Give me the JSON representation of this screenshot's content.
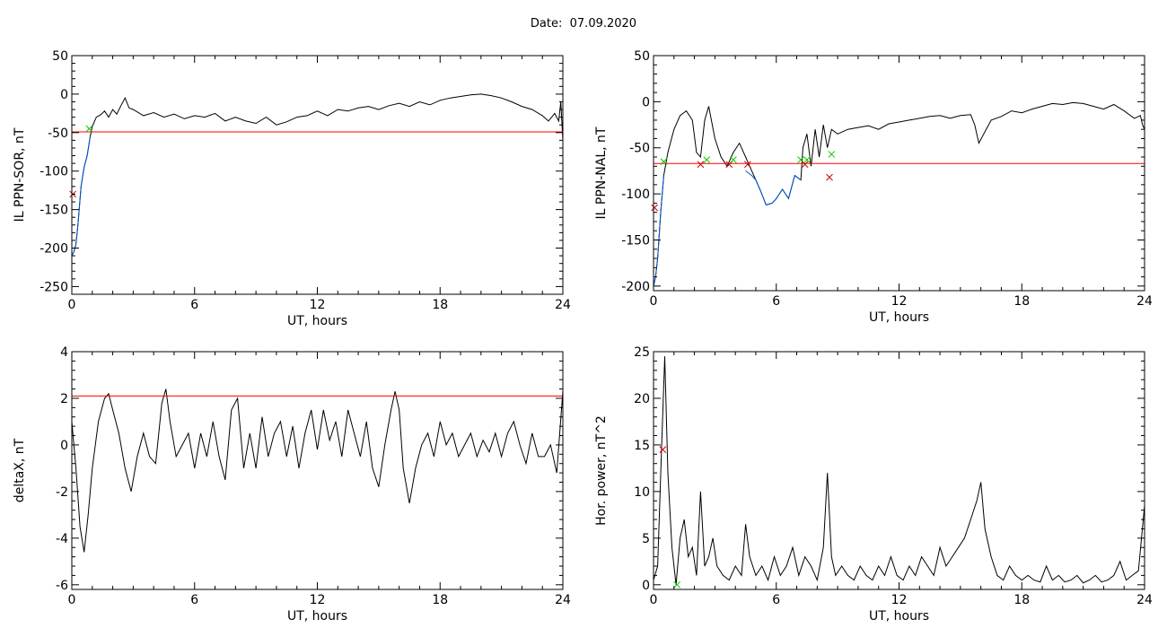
{
  "page": {
    "date_label": "Date:",
    "date_value": "07.09.2020"
  },
  "chart_data": [
    {
      "type": "line",
      "xlabel": "UT, hours",
      "ylabel": "IL PPN-SOR, nT",
      "xlim": [
        0,
        24
      ],
      "ylim": [
        -260,
        50
      ],
      "xticks": [
        0,
        6,
        12,
        18,
        24
      ],
      "yticks": [
        -250,
        -200,
        -150,
        -100,
        -50,
        0,
        50
      ],
      "threshold": -49,
      "threshold_color": "#ff0000",
      "series": [
        {
          "color": "#000000",
          "x": [
            0,
            0.1,
            0.2,
            0.3,
            0.45,
            0.6,
            0.75,
            0.9,
            1.0,
            1.2,
            1.4,
            1.6,
            1.8,
            2.0,
            2.2,
            2.4,
            2.6,
            2.8,
            3.0,
            3.5,
            4.0,
            4.5,
            5.0,
            5.5,
            6.0,
            6.5,
            7.0,
            7.5,
            8.0,
            8.5,
            9.0,
            9.5,
            10.0,
            10.5,
            11.0,
            11.5,
            12.0,
            12.5,
            13.0,
            13.5,
            14.0,
            14.5,
            15.0,
            15.5,
            16.0,
            16.5,
            17.0,
            17.5,
            18.0,
            18.5,
            19.0,
            19.5,
            20.0,
            20.5,
            21.0,
            21.5,
            22.0,
            22.5,
            23.0,
            23.3,
            23.6,
            23.8,
            23.9,
            24.0
          ],
          "y": [
            -210,
            -205,
            -195,
            -170,
            -120,
            -95,
            -80,
            -55,
            -42,
            -30,
            -27,
            -22,
            -30,
            -20,
            -26,
            -15,
            -5,
            -18,
            -20,
            -28,
            -24,
            -30,
            -26,
            -32,
            -28,
            -30,
            -25,
            -35,
            -30,
            -35,
            -38,
            -30,
            -40,
            -36,
            -30,
            -28,
            -22,
            -28,
            -20,
            -22,
            -18,
            -16,
            -20,
            -15,
            -12,
            -16,
            -10,
            -14,
            -8,
            -5,
            -3,
            -1,
            0,
            -2,
            -5,
            -10,
            -16,
            -20,
            -28,
            -35,
            -25,
            -35,
            -10,
            -60
          ]
        },
        {
          "color": "#0055cc",
          "x": [
            0,
            0.1,
            0.2,
            0.3,
            0.45,
            0.6,
            0.75,
            0.9
          ],
          "y": [
            -210,
            -205,
            -195,
            -170,
            -120,
            -95,
            -80,
            -55
          ]
        }
      ],
      "markers": [
        {
          "x": 0.85,
          "y": -45,
          "color": "#00cc00"
        },
        {
          "x": 0.05,
          "y": -130,
          "color": "#cc0000"
        }
      ]
    },
    {
      "type": "line",
      "xlabel": "UT, hours",
      "ylabel": "IL PPN-NAL, nT",
      "xlim": [
        0,
        24
      ],
      "ylim": [
        -205,
        50
      ],
      "xticks": [
        0,
        6,
        12,
        18,
        24
      ],
      "yticks": [
        -200,
        -150,
        -100,
        -50,
        0,
        50
      ],
      "threshold": -67,
      "threshold_color": "#ff0000",
      "series": [
        {
          "color": "#000000",
          "x": [
            0,
            0.1,
            0.2,
            0.35,
            0.5,
            0.7,
            1.0,
            1.3,
            1.6,
            1.9,
            2.1,
            2.3,
            2.5,
            2.7,
            3.0,
            3.3,
            3.6,
            3.9,
            4.2,
            4.5,
            4.8,
            5.0,
            5.2,
            5.5,
            5.8,
            6.0,
            6.3,
            6.6,
            6.9,
            7.2,
            7.3,
            7.5,
            7.7,
            7.9,
            8.1,
            8.3,
            8.5,
            8.7,
            9.0,
            9.5,
            10.0,
            10.5,
            11.0,
            11.5,
            12.0,
            12.5,
            13.0,
            13.5,
            14.0,
            14.5,
            15.0,
            15.5,
            15.7,
            15.9,
            16.5,
            17.0,
            17.5,
            18.0,
            18.5,
            19.0,
            19.5,
            20.0,
            20.5,
            21.0,
            21.5,
            22.0,
            22.5,
            23.0,
            23.5,
            23.8,
            23.9,
            24.0
          ],
          "y": [
            -200,
            -190,
            -170,
            -120,
            -80,
            -55,
            -30,
            -15,
            -10,
            -20,
            -55,
            -60,
            -20,
            -5,
            -40,
            -60,
            -70,
            -55,
            -45,
            -60,
            -75,
            -85,
            -95,
            -112,
            -110,
            -105,
            -95,
            -105,
            -80,
            -85,
            -50,
            -35,
            -70,
            -30,
            -60,
            -25,
            -50,
            -30,
            -35,
            -30,
            -28,
            -26,
            -30,
            -24,
            -22,
            -20,
            -18,
            -16,
            -15,
            -18,
            -15,
            -14,
            -25,
            -45,
            -20,
            -16,
            -10,
            -12,
            -8,
            -5,
            -2,
            -3,
            -1,
            -2,
            -5,
            -8,
            -3,
            -10,
            -18,
            -15,
            -25,
            -30
          ]
        },
        {
          "color": "#0055cc",
          "x": [
            0,
            0.1,
            0.2,
            0.35,
            0.5
          ],
          "y": [
            -200,
            -190,
            -170,
            -120,
            -80
          ]
        },
        {
          "color": "#0055cc",
          "x": [
            4.5,
            4.8,
            5.0,
            5.2,
            5.5,
            5.8,
            6.0,
            6.3,
            6.6,
            6.9,
            7.2
          ],
          "y": [
            -75,
            -80,
            -85,
            -95,
            -112,
            -110,
            -105,
            -95,
            -105,
            -80,
            -85
          ]
        }
      ],
      "markers": [
        {
          "x": 0.5,
          "y": -65,
          "color": "#00cc00"
        },
        {
          "x": 2.3,
          "y": -68,
          "color": "#cc0000"
        },
        {
          "x": 2.6,
          "y": -63,
          "color": "#00cc00"
        },
        {
          "x": 3.7,
          "y": -68,
          "color": "#cc0000"
        },
        {
          "x": 3.9,
          "y": -63,
          "color": "#00cc00"
        },
        {
          "x": 4.6,
          "y": -68,
          "color": "#cc0000"
        },
        {
          "x": 7.2,
          "y": -63,
          "color": "#00cc00"
        },
        {
          "x": 7.4,
          "y": -68,
          "color": "#cc0000"
        },
        {
          "x": 7.5,
          "y": -63,
          "color": "#00cc00"
        },
        {
          "x": 8.6,
          "y": -82,
          "color": "#cc0000"
        },
        {
          "x": 8.7,
          "y": -57,
          "color": "#00cc00"
        },
        {
          "x": 0.05,
          "y": -115,
          "color": "#cc0000"
        }
      ]
    },
    {
      "type": "line",
      "xlabel": "UT, hours",
      "ylabel": "deltaX, nT",
      "xlim": [
        0,
        24
      ],
      "ylim": [
        -6.2,
        4
      ],
      "xticks": [
        0,
        6,
        12,
        18,
        24
      ],
      "yticks": [
        -6,
        -4,
        -2,
        0,
        2,
        4
      ],
      "threshold": 2.1,
      "threshold_color": "#ff0000",
      "series": [
        {
          "color": "#000000",
          "x": [
            0,
            0.2,
            0.4,
            0.6,
            0.8,
            1.0,
            1.3,
            1.6,
            1.8,
            2.0,
            2.3,
            2.6,
            2.9,
            3.2,
            3.5,
            3.8,
            4.1,
            4.4,
            4.6,
            4.8,
            5.1,
            5.4,
            5.7,
            6.0,
            6.3,
            6.6,
            6.9,
            7.2,
            7.5,
            7.8,
            8.1,
            8.4,
            8.7,
            9.0,
            9.3,
            9.6,
            9.9,
            10.2,
            10.5,
            10.8,
            11.1,
            11.4,
            11.7,
            12.0,
            12.3,
            12.6,
            12.9,
            13.2,
            13.5,
            13.8,
            14.1,
            14.4,
            14.7,
            15.0,
            15.3,
            15.6,
            15.8,
            16.0,
            16.2,
            16.5,
            16.8,
            17.1,
            17.4,
            17.7,
            18.0,
            18.3,
            18.6,
            18.9,
            19.2,
            19.5,
            19.8,
            20.1,
            20.4,
            20.7,
            21.0,
            21.3,
            21.6,
            21.9,
            22.2,
            22.5,
            22.8,
            23.1,
            23.4,
            23.7,
            24.0
          ],
          "y": [
            1,
            -1,
            -3.5,
            -4.6,
            -3,
            -1,
            1,
            2,
            2.2,
            1.5,
            0.5,
            -1,
            -2,
            -0.5,
            0.5,
            -0.5,
            -0.8,
            1.8,
            2.4,
            1,
            -0.5,
            0,
            0.5,
            -1,
            0.5,
            -0.5,
            1,
            -0.5,
            -1.5,
            1.5,
            2,
            -1,
            0.5,
            -1,
            1.2,
            -0.5,
            0.5,
            1,
            -0.5,
            0.8,
            -1,
            0.5,
            1.5,
            -0.2,
            1.5,
            0.2,
            1,
            -0.5,
            1.5,
            0.5,
            -0.5,
            1,
            -1,
            -1.8,
            0,
            1.5,
            2.3,
            1.5,
            -1,
            -2.5,
            -1,
            0,
            0.5,
            -0.5,
            1,
            0,
            0.5,
            -0.5,
            0,
            0.5,
            -0.5,
            0.2,
            -0.3,
            0.5,
            -0.5,
            0.5,
            1,
            0,
            -0.8,
            0.5,
            -0.5,
            -0.5,
            0,
            -1.2,
            2.3
          ]
        }
      ],
      "markers": []
    },
    {
      "type": "line",
      "xlabel": "UT, hours",
      "ylabel": "Hor. power, nT^2",
      "xlim": [
        0,
        24
      ],
      "ylim": [
        -0.5,
        25
      ],
      "xticks": [
        0,
        6,
        12,
        18,
        24
      ],
      "yticks": [
        0,
        5,
        10,
        15,
        20,
        25
      ],
      "threshold": 25,
      "threshold_color": "#ff0000",
      "series": [
        {
          "color": "#000000",
          "x": [
            0,
            0.2,
            0.4,
            0.55,
            0.7,
            0.9,
            1.1,
            1.3,
            1.5,
            1.7,
            1.9,
            2.1,
            2.3,
            2.5,
            2.7,
            2.9,
            3.1,
            3.4,
            3.7,
            4.0,
            4.3,
            4.5,
            4.7,
            5.0,
            5.3,
            5.6,
            5.9,
            6.2,
            6.5,
            6.8,
            7.1,
            7.4,
            7.7,
            8.0,
            8.3,
            8.5,
            8.7,
            8.9,
            9.2,
            9.5,
            9.8,
            10.1,
            10.4,
            10.7,
            11.0,
            11.3,
            11.6,
            11.9,
            12.2,
            12.5,
            12.8,
            13.1,
            13.4,
            13.7,
            14.0,
            14.3,
            14.6,
            14.9,
            15.2,
            15.5,
            15.8,
            16.0,
            16.2,
            16.5,
            16.8,
            17.1,
            17.4,
            17.7,
            18.0,
            18.3,
            18.6,
            18.9,
            19.2,
            19.5,
            19.8,
            20.1,
            20.4,
            20.7,
            21.0,
            21.3,
            21.6,
            21.9,
            22.2,
            22.5,
            22.8,
            23.1,
            23.4,
            23.7,
            24.0
          ],
          "y": [
            0.5,
            2,
            15,
            24.5,
            12,
            4,
            0,
            5,
            7,
            3,
            4,
            1,
            10,
            2,
            3,
            5,
            2,
            1,
            0.5,
            2,
            1,
            6.5,
            3,
            1,
            2,
            0.5,
            3,
            1,
            2,
            4,
            1,
            3,
            2,
            0.5,
            4,
            12,
            3,
            1,
            2,
            1,
            0.5,
            2,
            1,
            0.5,
            2,
            1,
            3,
            1,
            0.5,
            2,
            1,
            3,
            2,
            1,
            4,
            2,
            3,
            4,
            5,
            7,
            9,
            11,
            6,
            3,
            1,
            0.5,
            2,
            1,
            0.5,
            1,
            0.5,
            0.3,
            2,
            0.5,
            1,
            0.3,
            0.5,
            1,
            0.2,
            0.5,
            1,
            0.3,
            0.5,
            1,
            2.5,
            0.5,
            1,
            1.5,
            8.5
          ]
        }
      ],
      "markers": [
        {
          "x": 0.45,
          "y": 14.5,
          "color": "#cc0000"
        },
        {
          "x": 1.15,
          "y": 0,
          "color": "#00cc00"
        }
      ]
    }
  ]
}
